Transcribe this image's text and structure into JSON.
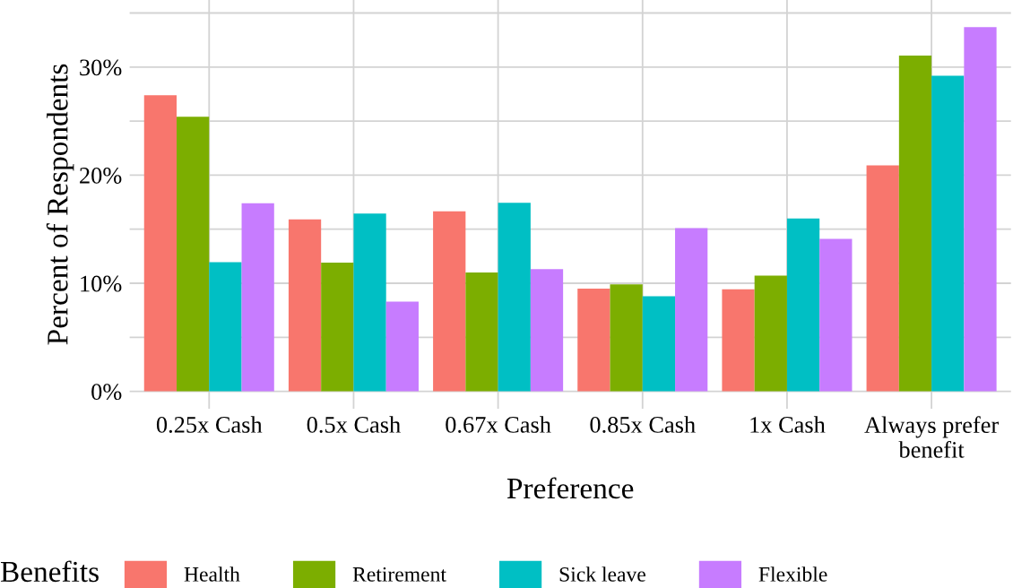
{
  "chart_data": {
    "type": "bar",
    "xlabel": "Preference",
    "ylabel": "Percent of Respondents",
    "legend_title": "Benefits",
    "categories": [
      "0.25x Cash",
      "0.5x Cash",
      "0.67x Cash",
      "0.85x Cash",
      "1x Cash",
      "Always prefer\nbenefit"
    ],
    "series": [
      {
        "name": "Health",
        "color": "#f8766d",
        "values": [
          27.4,
          15.9,
          16.65,
          9.5,
          9.45,
          20.9
        ]
      },
      {
        "name": "Retirement",
        "color": "#7cae00",
        "values": [
          25.4,
          11.9,
          11.0,
          9.9,
          10.7,
          31.05
        ]
      },
      {
        "name": "Sick leave",
        "color": "#00bfc4",
        "values": [
          11.95,
          16.45,
          17.45,
          8.8,
          16.0,
          29.2
        ]
      },
      {
        "name": "Flexible",
        "color": "#c77cff",
        "values": [
          17.4,
          8.3,
          11.3,
          15.1,
          14.1,
          33.7
        ]
      }
    ],
    "ylim": [
      -1.6,
      36.2
    ],
    "yticks": [
      {
        "value": 0,
        "label": "0%"
      },
      {
        "value": 5,
        "label": null
      },
      {
        "value": 10,
        "label": "10%"
      },
      {
        "value": 15,
        "label": null
      },
      {
        "value": 20,
        "label": "20%"
      },
      {
        "value": 25,
        "label": null
      },
      {
        "value": 30,
        "label": "30%"
      },
      {
        "value": 35,
        "label": null
      }
    ],
    "grid": true,
    "legend": "bottom"
  }
}
